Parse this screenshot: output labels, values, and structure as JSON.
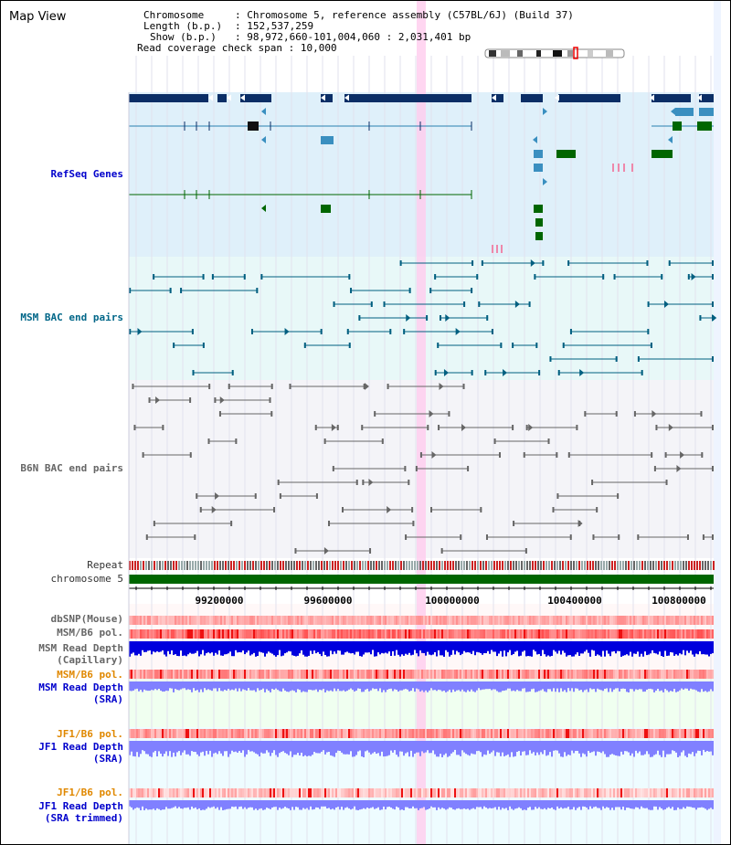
{
  "title": "Map View",
  "info": {
    "chromosome_label": "Chromosome",
    "chromosome_value": "Chromosome 5, reference assembly (C57BL/6J) (Build 37)",
    "length_label": "Length (b.p.)",
    "length_value": "152,537,259",
    "show_label": "Show (b.p.)",
    "show_value": "98,972,660-101,004,060 : 2,031,401 bp",
    "span_label": "Read coverage check span",
    "span_value": "10,000"
  },
  "tracks": {
    "refseq": "RefSeq Genes",
    "msm_bac": "MSM BAC end pairs",
    "b6n_bac": "B6N BAC end pairs",
    "repeat": "Repeat",
    "chromosome": "chromosome 5",
    "dbsnp": "dbSNP(Mouse)",
    "msm_b6_pol_1": "MSM/B6 pol.",
    "msm_read_depth_cap_1": "MSM Read Depth",
    "msm_read_depth_cap_2": "(Capillary)",
    "msm_b6_pol_2": "MSM/B6 pol.",
    "msm_read_depth_sra_1": "MSM Read Depth",
    "msm_read_depth_sra_2": "(SRA)",
    "jf1_b6_pol_1": "JF1/B6 pol.",
    "jf1_read_depth_sra_1": "JF1 Read Depth",
    "jf1_read_depth_sra_2": "(SRA)",
    "jf1_b6_pol_2": "JF1/B6 pol.",
    "jf1_read_depth_trim_1": "JF1 Read Depth",
    "jf1_read_depth_trim_2": "(SRA trimmed)"
  },
  "axis": {
    "ticks": [
      "99200000",
      "99600000",
      "100000000",
      "100400000",
      "100800000"
    ]
  },
  "colors": {
    "refseq_dark": "#0b2e66",
    "refseq_mid": "#3a8fc0",
    "refseq_green": "#006600",
    "msm_bac": "#005f80",
    "b6n_bac": "#666666",
    "highlight": "#ffccee",
    "depth_blue": "#0000dd",
    "depth_light": "#8080ff",
    "pol_red": "#ff4444"
  }
}
